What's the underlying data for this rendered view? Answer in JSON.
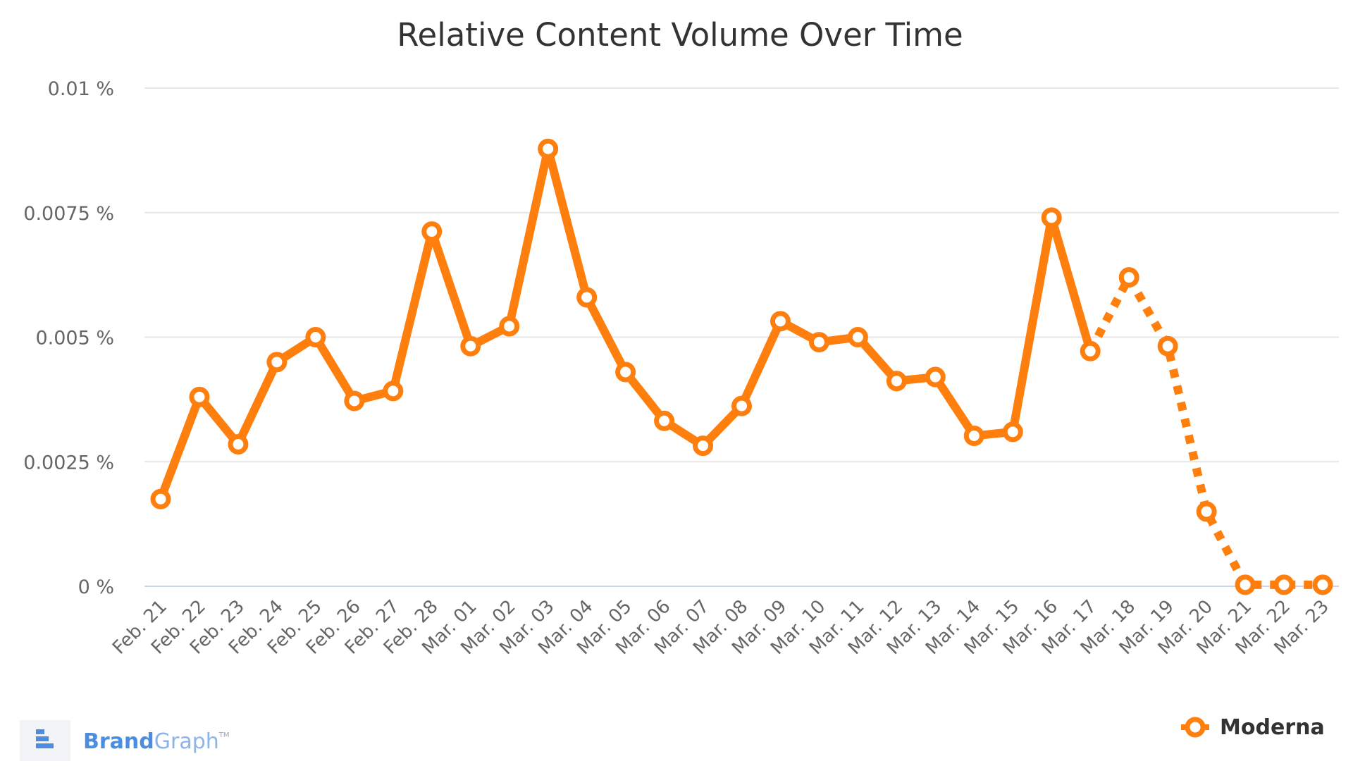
{
  "chart_data": {
    "type": "line",
    "title": "Relative Content Volume Over Time",
    "xlabel": "",
    "ylabel": "",
    "ylim": [
      0,
      0.01
    ],
    "yticks": [
      0,
      0.0025,
      0.005,
      0.0075,
      0.01
    ],
    "ytick_labels": [
      "0 %",
      "0.0025 %",
      "0.005 %",
      "0.0075 %",
      "0.01 %"
    ],
    "grid": true,
    "legend_position": "bottom-right",
    "categories": [
      "Feb. 21",
      "Feb. 22",
      "Feb. 23",
      "Feb. 24",
      "Feb. 25",
      "Feb. 26",
      "Feb. 27",
      "Feb. 28",
      "Mar. 01",
      "Mar. 02",
      "Mar. 03",
      "Mar. 04",
      "Mar. 05",
      "Mar. 06",
      "Mar. 07",
      "Mar. 08",
      "Mar. 09",
      "Mar. 10",
      "Mar. 11",
      "Mar. 12",
      "Mar. 13",
      "Mar. 14",
      "Mar. 15",
      "Mar. 16",
      "Mar. 17",
      "Mar. 18",
      "Mar. 19",
      "Mar. 20",
      "Mar. 21",
      "Mar. 22",
      "Mar. 23"
    ],
    "series": [
      {
        "name": "Moderna",
        "color": "#ff7f0e",
        "values": [
          0.00175,
          0.0038,
          0.00285,
          0.0045,
          0.005,
          0.00372,
          0.00392,
          0.00712,
          0.00482,
          0.00522,
          0.00878,
          0.0058,
          0.0043,
          0.00332,
          0.00282,
          0.00362,
          0.00532,
          0.0049,
          0.005,
          0.00412,
          0.0042,
          0.00302,
          0.0031,
          0.0074,
          0.00472,
          0.0062,
          0.00482,
          0.0015,
          3e-05,
          3e-05,
          3e-05
        ],
        "solid_until_index": 24
      }
    ]
  },
  "branding": {
    "logo_name": "BrandGraph",
    "logo_part_a": "Brand",
    "logo_part_b": "Graph",
    "logo_tm": "TM",
    "icon": "brandgraph-logo-icon",
    "color": "#4b8de0"
  }
}
